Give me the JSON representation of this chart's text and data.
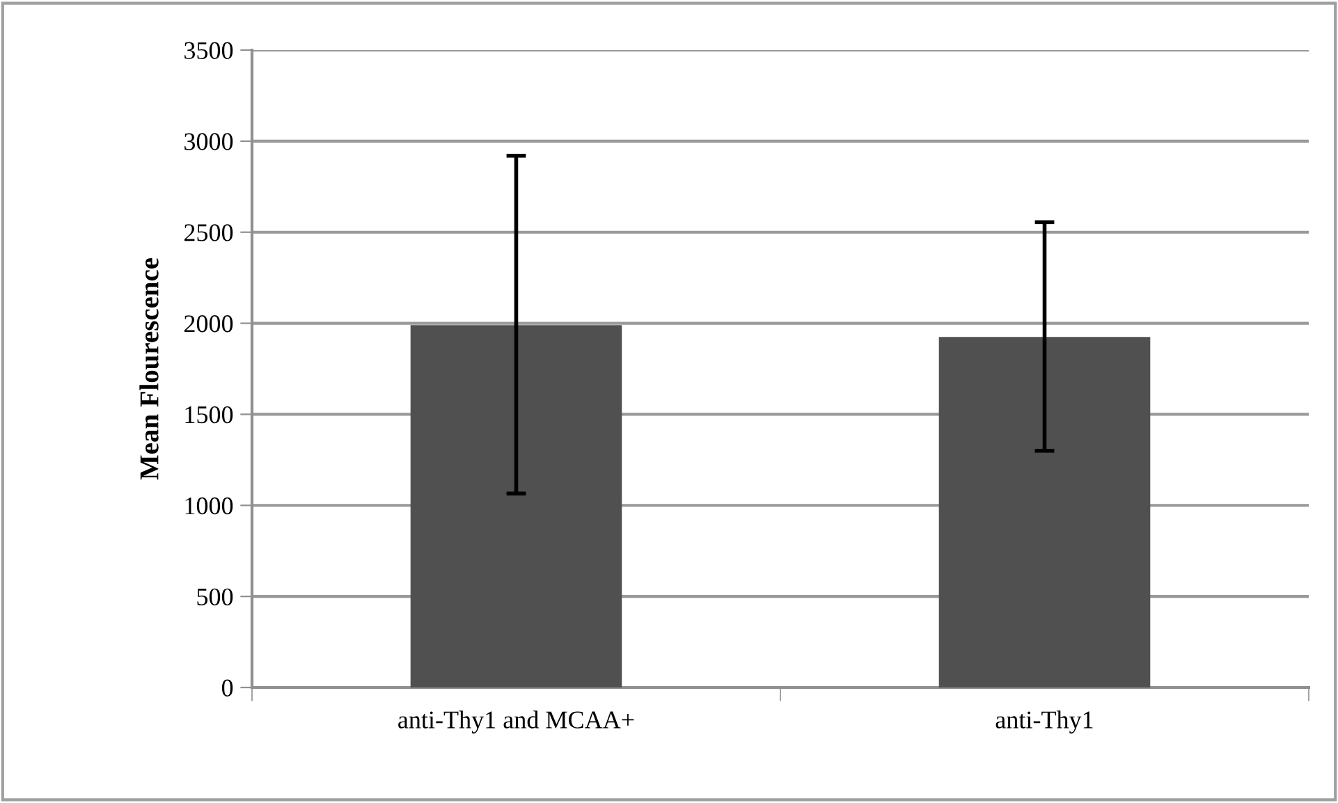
{
  "chart_data": {
    "type": "bar",
    "ylabel": "Mean Flourescence",
    "categories": [
      "anti-Thy1 and MCAA+",
      "anti-Thy1"
    ],
    "values": [
      1990,
      1925
    ],
    "errors": [
      [
        1065,
        2920
      ],
      [
        1300,
        2555
      ]
    ],
    "color": "#505050",
    "ylim": [
      0,
      3500
    ],
    "yticks": [
      0,
      500,
      1000,
      1500,
      2000,
      2500,
      3000,
      3500
    ],
    "grid": "y"
  }
}
